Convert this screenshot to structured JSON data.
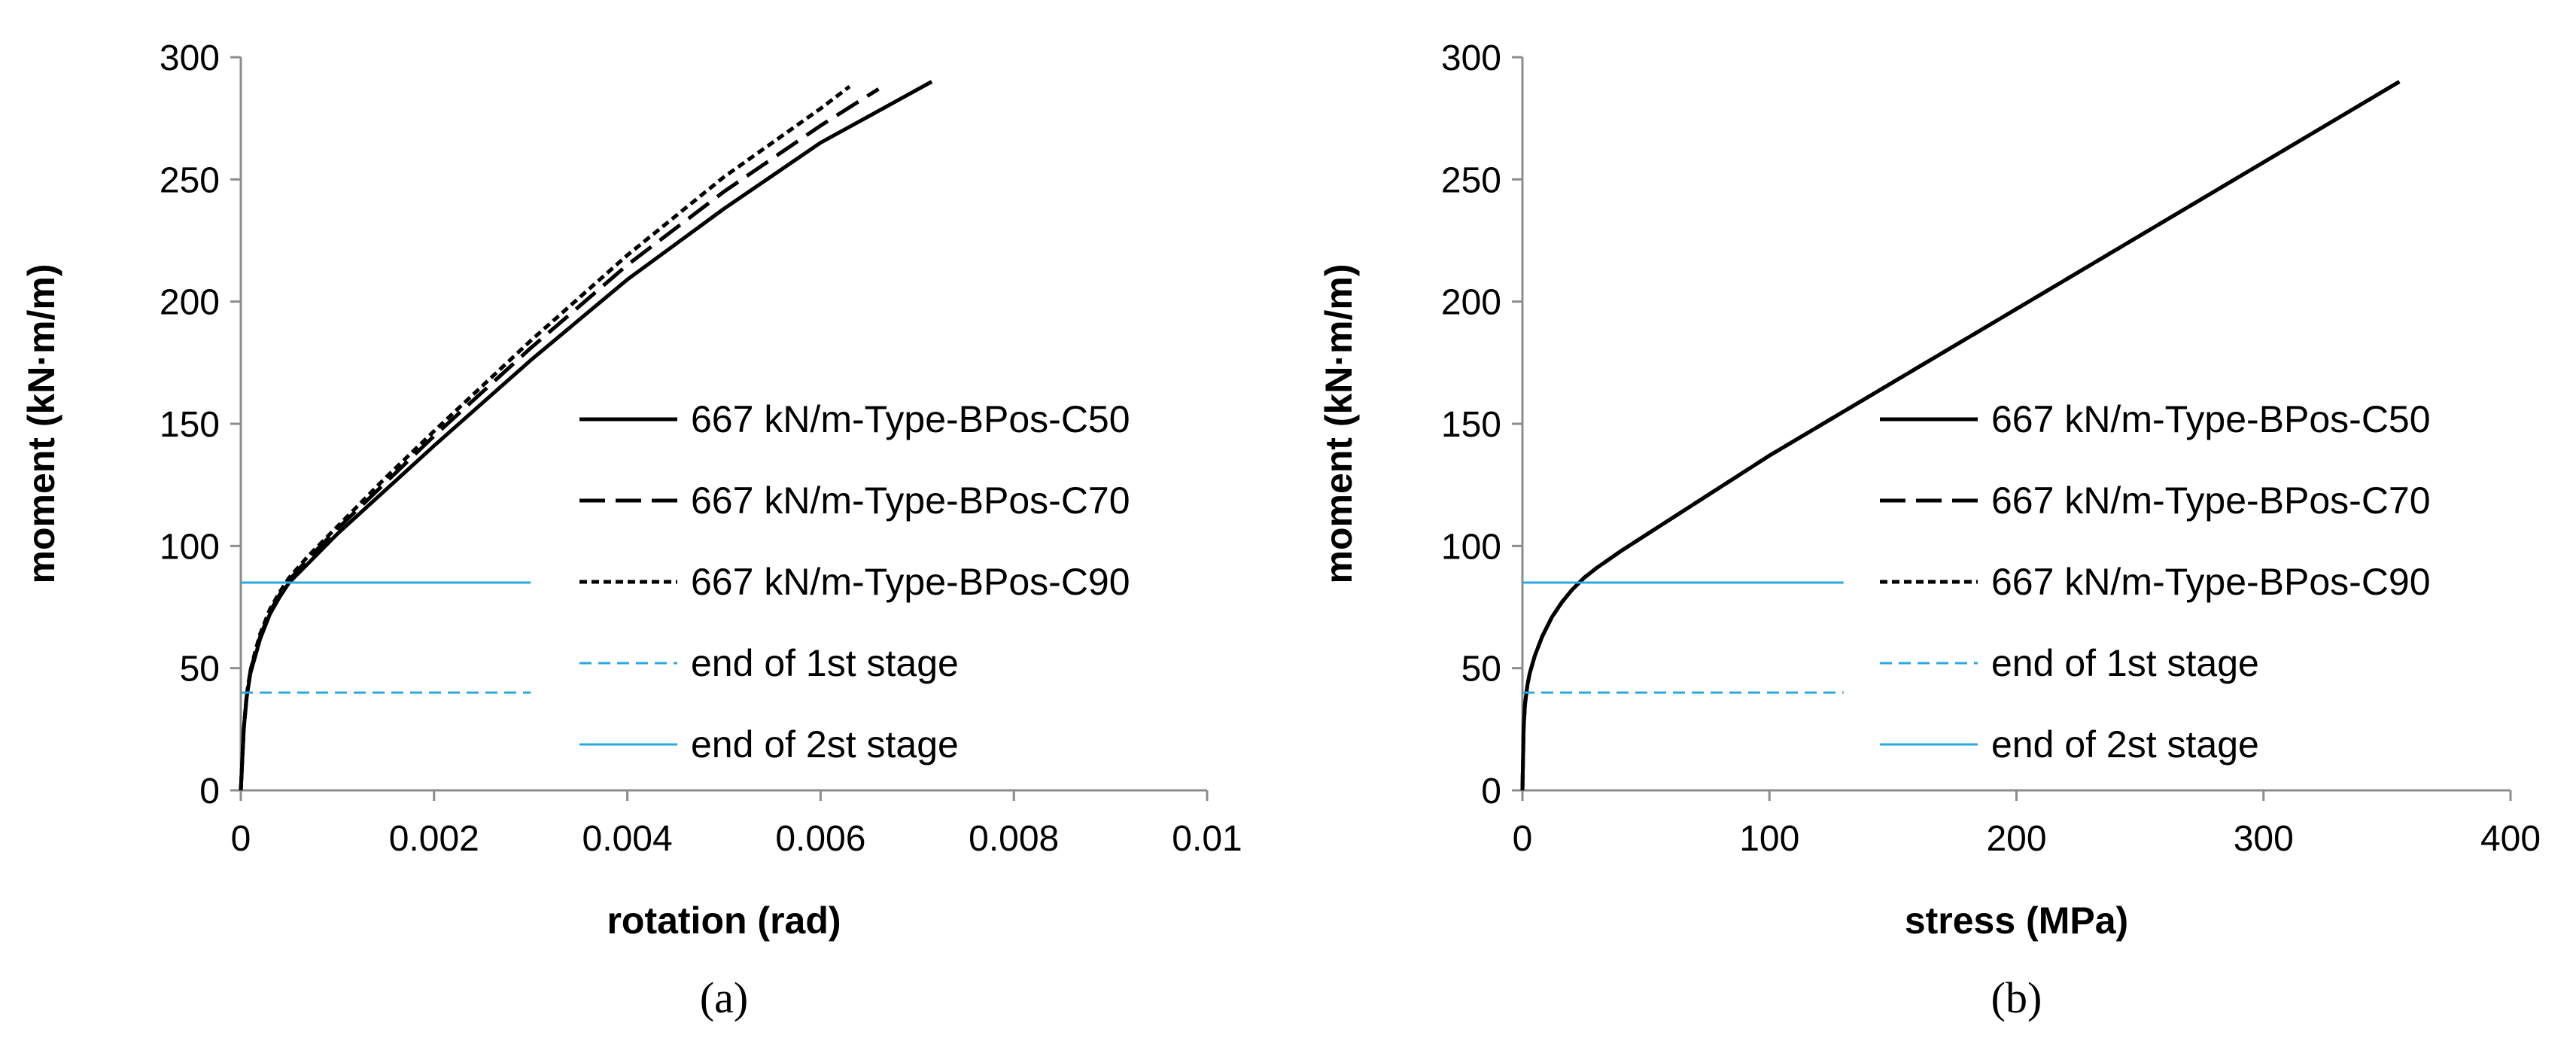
{
  "figure": {
    "panels": [
      "(a)",
      "(b)"
    ],
    "line_styles": {
      "667 kN/m-Type-BPos-C50": {
        "color": "#000000",
        "dash": "solid"
      },
      "667 kN/m-Type-BPos-C70": {
        "color": "#000000",
        "dash": "long-dash"
      },
      "667 kN/m-Type-BPos-C90": {
        "color": "#000000",
        "dash": "short-dash"
      },
      "end of 1st stage": {
        "color": "#29A9E0",
        "dash": "dashed"
      },
      "end of 2st stage": {
        "color": "#29A9E0",
        "dash": "solid"
      }
    }
  },
  "chart_data": [
    {
      "type": "line",
      "panel": "(a)",
      "xlabel": "rotation (rad)",
      "ylabel": "moment (kN·m/m)",
      "xlim": [
        0,
        0.01
      ],
      "ylim": [
        0,
        300
      ],
      "xticks": [
        0,
        0.002,
        0.004,
        0.006,
        0.008,
        0.01
      ],
      "xtick_labels": [
        "0",
        "0.002",
        "0.004",
        "0.006",
        "0.008",
        "0.01"
      ],
      "yticks": [
        0,
        50,
        100,
        150,
        200,
        250,
        300
      ],
      "ytick_labels": [
        "0",
        "50",
        "100",
        "150",
        "200",
        "250",
        "300"
      ],
      "legend_position": "right",
      "series": [
        {
          "name": "667 kN/m-Type-BPos-C50",
          "x": [
            0,
            3e-05,
            6e-05,
            0.0001,
            0.00015,
            0.0002,
            0.0003,
            0.0004,
            0.0005,
            0.0007,
            0.001,
            0.0015,
            0.002,
            0.003,
            0.004,
            0.005,
            0.006,
            0.00715
          ],
          "y": [
            0,
            25,
            38,
            48,
            55,
            62,
            72,
            79,
            85,
            93,
            105,
            123,
            141,
            176,
            209,
            238,
            265,
            290
          ]
        },
        {
          "name": "667 kN/m-Type-BPos-C70",
          "x": [
            0,
            3e-05,
            6e-05,
            0.0001,
            0.00015,
            0.0002,
            0.0003,
            0.0004,
            0.0005,
            0.0007,
            0.001,
            0.0015,
            0.002,
            0.003,
            0.004,
            0.005,
            0.006,
            0.0066
          ],
          "y": [
            0,
            25,
            38,
            49,
            56,
            63,
            73,
            80,
            86,
            95,
            107,
            126,
            145,
            181,
            215,
            245,
            272,
            287
          ]
        },
        {
          "name": "667 kN/m-Type-BPos-C90",
          "x": [
            0,
            3e-05,
            6e-05,
            0.0001,
            0.00015,
            0.0002,
            0.0003,
            0.0004,
            0.0005,
            0.0007,
            0.001,
            0.0015,
            0.002,
            0.003,
            0.004,
            0.005,
            0.006,
            0.0063
          ],
          "y": [
            0,
            25,
            39,
            49,
            57,
            64,
            74,
            81,
            87,
            96,
            108,
            128,
            147,
            184,
            219,
            251,
            279,
            288
          ]
        },
        {
          "name": "end of 1st stage",
          "x": [
            0,
            0.003
          ],
          "y": [
            40,
            40
          ]
        },
        {
          "name": "end of 2st stage",
          "x": [
            0,
            0.003
          ],
          "y": [
            85,
            85
          ]
        }
      ]
    },
    {
      "type": "line",
      "panel": "(b)",
      "xlabel": "stress (MPa)",
      "ylabel": "moment (kN·m/m)",
      "xlim": [
        0,
        400
      ],
      "ylim": [
        0,
        300
      ],
      "xticks": [
        0,
        100,
        200,
        300,
        400
      ],
      "xtick_labels": [
        "0",
        "100",
        "200",
        "300",
        "400"
      ],
      "yticks": [
        0,
        50,
        100,
        150,
        200,
        250,
        300
      ],
      "ytick_labels": [
        "0",
        "50",
        "100",
        "150",
        "200",
        "250",
        "300"
      ],
      "legend_position": "right",
      "series": [
        {
          "name": "667 kN/m-Type-BPos-C50",
          "x": [
            0,
            0.5,
            1,
            2,
            3,
            5,
            8,
            12,
            16,
            20,
            25,
            30,
            40,
            60,
            80,
            100,
            150,
            200,
            250,
            300,
            355
          ],
          "y": [
            0,
            25,
            35,
            43,
            48,
            55,
            63,
            71,
            77,
            82,
            87,
            91,
            98,
            111,
            124,
            137,
            167,
            197,
            227,
            257,
            290
          ]
        },
        {
          "name": "667 kN/m-Type-BPos-C70",
          "x": [
            0,
            0.5,
            1,
            2,
            3,
            5,
            8,
            12,
            16,
            20,
            25,
            30,
            40,
            60,
            80,
            100,
            150,
            200,
            250,
            300,
            355
          ],
          "y": [
            0,
            25,
            35,
            43,
            48,
            55,
            63,
            71,
            77,
            82,
            87,
            91,
            98,
            111,
            124,
            137,
            167,
            197,
            227,
            257,
            290
          ]
        },
        {
          "name": "667 kN/m-Type-BPos-C90",
          "x": [
            0,
            0.5,
            1,
            2,
            3,
            5,
            8,
            12,
            16,
            20,
            25,
            30,
            40,
            60,
            80,
            100,
            150,
            200,
            250,
            300,
            355
          ],
          "y": [
            0,
            25,
            35,
            43,
            48,
            55,
            63,
            71,
            77,
            82,
            87,
            91,
            98,
            111,
            124,
            137,
            167,
            197,
            227,
            257,
            290
          ]
        },
        {
          "name": "end of 1st stage",
          "x": [
            0,
            130
          ],
          "y": [
            40,
            40
          ]
        },
        {
          "name": "end of 2st stage",
          "x": [
            0,
            130
          ],
          "y": [
            85,
            85
          ]
        }
      ]
    }
  ]
}
